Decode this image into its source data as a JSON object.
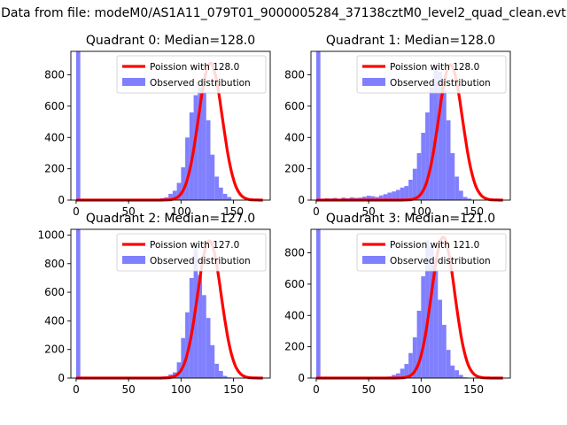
{
  "figure": {
    "suptitle": "Data from file: modeM0/AS1A11_079T01_9000005284_37138cztM0_level2_quad_clean.evt"
  },
  "chart_data": [
    {
      "type": "bar",
      "title": "Quadrant 0: Median=128.0",
      "xlim": [
        -5,
        185
      ],
      "ylim": [
        0,
        950
      ],
      "xticks": [
        0,
        50,
        100,
        150
      ],
      "yticks": [
        0,
        200,
        400,
        600,
        800
      ],
      "legend": {
        "placement": "top-right",
        "entries": [
          {
            "label": "Poission with 128.0",
            "color": "#ff0000",
            "style": "line"
          },
          {
            "label": "Observed distribution",
            "color": "#8080ff",
            "style": "patch"
          }
        ]
      },
      "poisson": {
        "mean": 128.0,
        "peak": 875
      },
      "histogram": {
        "bin_start": 0,
        "bin_width": 4,
        "color": "#8080ff",
        "values": [
          950,
          0,
          0,
          0,
          0,
          0,
          0,
          0,
          0,
          0,
          0,
          0,
          0,
          0,
          0,
          0,
          0,
          0,
          5,
          8,
          12,
          18,
          40,
          60,
          110,
          210,
          400,
          560,
          670,
          720,
          690,
          510,
          290,
          150,
          80,
          40,
          20,
          0,
          0,
          0,
          0,
          0,
          0,
          0,
          0,
          0
        ]
      }
    },
    {
      "type": "bar",
      "title": "Quadrant 1: Median=128.0",
      "xlim": [
        -5,
        185
      ],
      "ylim": [
        0,
        950
      ],
      "xticks": [
        0,
        50,
        100,
        150
      ],
      "yticks": [
        0,
        200,
        400,
        600,
        800
      ],
      "legend": {
        "placement": "top-right",
        "entries": [
          {
            "label": "Poission with 128.0",
            "color": "#ff0000",
            "style": "line"
          },
          {
            "label": "Observed distribution",
            "color": "#8080ff",
            "style": "patch"
          }
        ]
      },
      "poisson": {
        "mean": 128.0,
        "peak": 865
      },
      "histogram": {
        "bin_start": 0,
        "bin_width": 4,
        "color": "#8080ff",
        "values": [
          950,
          8,
          12,
          10,
          14,
          8,
          16,
          12,
          18,
          14,
          16,
          22,
          28,
          25,
          20,
          30,
          38,
          48,
          55,
          65,
          80,
          90,
          130,
          200,
          300,
          430,
          560,
          720,
          860,
          820,
          700,
          510,
          300,
          150,
          60,
          20,
          10,
          0,
          0,
          0,
          0,
          0,
          0,
          0,
          0,
          0
        ]
      }
    },
    {
      "type": "bar",
      "title": "Quadrant 2: Median=127.0",
      "xlim": [
        -5,
        185
      ],
      "ylim": [
        0,
        1040
      ],
      "xticks": [
        0,
        50,
        100,
        150
      ],
      "yticks": [
        0,
        200,
        400,
        600,
        800,
        1000
      ],
      "legend": {
        "placement": "top-right",
        "entries": [
          {
            "label": "Poission with 127.0",
            "color": "#ff0000",
            "style": "line"
          },
          {
            "label": "Observed distribution",
            "color": "#8080ff",
            "style": "patch"
          }
        ]
      },
      "poisson": {
        "mean": 127.0,
        "peak": 960
      },
      "histogram": {
        "bin_start": 0,
        "bin_width": 4,
        "color": "#8080ff",
        "values": [
          1040,
          0,
          0,
          0,
          0,
          0,
          0,
          0,
          0,
          0,
          0,
          0,
          0,
          0,
          0,
          0,
          0,
          0,
          0,
          6,
          10,
          14,
          25,
          40,
          110,
          280,
          460,
          700,
          930,
          720,
          580,
          420,
          230,
          100,
          50,
          15,
          5,
          0,
          0,
          0,
          0,
          0,
          0,
          0,
          0,
          0
        ]
      }
    },
    {
      "type": "bar",
      "title": "Quadrant 3: Median=121.0",
      "xlim": [
        -5,
        185
      ],
      "ylim": [
        0,
        950
      ],
      "xticks": [
        0,
        50,
        100,
        150
      ],
      "yticks": [
        0,
        200,
        400,
        600,
        800
      ],
      "legend": {
        "placement": "top-right",
        "entries": [
          {
            "label": "Poission with 121.0",
            "color": "#ff0000",
            "style": "line"
          },
          {
            "label": "Observed distribution",
            "color": "#8080ff",
            "style": "patch"
          }
        ]
      },
      "poisson": {
        "mean": 121.0,
        "peak": 900
      },
      "histogram": {
        "bin_start": 0,
        "bin_width": 4,
        "color": "#8080ff",
        "values": [
          950,
          0,
          0,
          0,
          0,
          0,
          0,
          0,
          0,
          0,
          0,
          0,
          0,
          0,
          0,
          0,
          0,
          10,
          20,
          30,
          60,
          90,
          160,
          260,
          430,
          650,
          880,
          840,
          690,
          500,
          340,
          180,
          80,
          50,
          20,
          5,
          0,
          0,
          0,
          0,
          0,
          0,
          0,
          0,
          0,
          0
        ]
      }
    }
  ]
}
